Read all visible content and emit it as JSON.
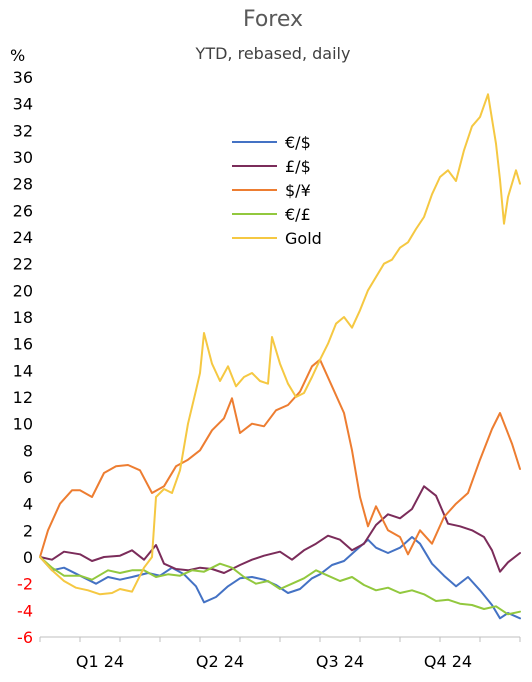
{
  "chart_data": {
    "type": "line",
    "title": "Forex",
    "subtitle": "YTD, rebased, daily",
    "ylabel": "%",
    "ylim": [
      -6,
      36
    ],
    "yticks": [
      -6,
      -4,
      -2,
      0,
      2,
      4,
      6,
      8,
      10,
      12,
      14,
      16,
      18,
      20,
      22,
      24,
      26,
      28,
      30,
      32,
      34,
      36
    ],
    "xlim": [
      0,
      12
    ],
    "xticks": [
      {
        "label": "Q1 24",
        "x": 1.5
      },
      {
        "label": "Q2 24",
        "x": 4.5
      },
      {
        "label": "Q3 24",
        "x": 7.5
      },
      {
        "label": "Q4 24",
        "x": 10.2
      }
    ],
    "legend_position": "upper-middle",
    "series": [
      {
        "name": "€/$",
        "color": "#4472c4",
        "points": [
          [
            0,
            0
          ],
          [
            0.3,
            -1
          ],
          [
            0.6,
            -0.8
          ],
          [
            1,
            -1.4
          ],
          [
            1.4,
            -2
          ],
          [
            1.7,
            -1.5
          ],
          [
            2,
            -1.7
          ],
          [
            2.3,
            -1.5
          ],
          [
            2.7,
            -1.2
          ],
          [
            3,
            -1.4
          ],
          [
            3.3,
            -0.8
          ],
          [
            3.6,
            -1.3
          ],
          [
            3.9,
            -2.2
          ],
          [
            4.1,
            -3.4
          ],
          [
            4.4,
            -3
          ],
          [
            4.7,
            -2.2
          ],
          [
            5,
            -1.6
          ],
          [
            5.3,
            -1.5
          ],
          [
            5.6,
            -1.7
          ],
          [
            5.9,
            -2.1
          ],
          [
            6.2,
            -2.7
          ],
          [
            6.5,
            -2.4
          ],
          [
            6.8,
            -1.6
          ],
          [
            7,
            -1.3
          ],
          [
            7.3,
            -0.6
          ],
          [
            7.6,
            -0.3
          ],
          [
            7.9,
            0.5
          ],
          [
            8.2,
            1.3
          ],
          [
            8.4,
            0.7
          ],
          [
            8.7,
            0.3
          ],
          [
            9,
            0.7
          ],
          [
            9.3,
            1.5
          ],
          [
            9.5,
            1
          ],
          [
            9.8,
            -0.5
          ],
          [
            10.1,
            -1.4
          ],
          [
            10.4,
            -2.2
          ],
          [
            10.7,
            -1.5
          ],
          [
            11,
            -2.5
          ],
          [
            11.3,
            -3.6
          ],
          [
            11.5,
            -4.6
          ],
          [
            11.7,
            -4.2
          ],
          [
            12,
            -4.6
          ]
        ]
      },
      {
        "name": "£/$",
        "color": "#7b2c5a",
        "points": [
          [
            0,
            0
          ],
          [
            0.3,
            -0.2
          ],
          [
            0.6,
            0.4
          ],
          [
            1,
            0.2
          ],
          [
            1.3,
            -0.3
          ],
          [
            1.6,
            0
          ],
          [
            2,
            0.1
          ],
          [
            2.3,
            0.5
          ],
          [
            2.6,
            -0.2
          ],
          [
            2.9,
            0.9
          ],
          [
            3.1,
            -0.5
          ],
          [
            3.4,
            -0.9
          ],
          [
            3.7,
            -1
          ],
          [
            4,
            -0.8
          ],
          [
            4.3,
            -0.9
          ],
          [
            4.6,
            -1.2
          ],
          [
            5,
            -0.6
          ],
          [
            5.3,
            -0.2
          ],
          [
            5.6,
            0.1
          ],
          [
            6,
            0.4
          ],
          [
            6.3,
            -0.2
          ],
          [
            6.6,
            0.5
          ],
          [
            6.9,
            1
          ],
          [
            7.2,
            1.6
          ],
          [
            7.5,
            1.3
          ],
          [
            7.8,
            0.5
          ],
          [
            8.1,
            1
          ],
          [
            8.4,
            2.4
          ],
          [
            8.7,
            3.2
          ],
          [
            9,
            2.9
          ],
          [
            9.3,
            3.6
          ],
          [
            9.6,
            5.3
          ],
          [
            9.9,
            4.6
          ],
          [
            10.2,
            2.5
          ],
          [
            10.5,
            2.3
          ],
          [
            10.8,
            2
          ],
          [
            11.1,
            1.5
          ],
          [
            11.3,
            0.5
          ],
          [
            11.5,
            -1.1
          ],
          [
            11.7,
            -0.4
          ],
          [
            12,
            0.3
          ]
        ]
      },
      {
        "name": "$/¥",
        "color": "#ed7d31",
        "points": [
          [
            0,
            0
          ],
          [
            0.2,
            2
          ],
          [
            0.5,
            4
          ],
          [
            0.8,
            5
          ],
          [
            1,
            5
          ],
          [
            1.3,
            4.5
          ],
          [
            1.6,
            6.3
          ],
          [
            1.9,
            6.8
          ],
          [
            2.2,
            6.9
          ],
          [
            2.5,
            6.5
          ],
          [
            2.8,
            4.8
          ],
          [
            3.1,
            5.3
          ],
          [
            3.4,
            6.8
          ],
          [
            3.7,
            7.3
          ],
          [
            4,
            8
          ],
          [
            4.3,
            9.5
          ],
          [
            4.6,
            10.4
          ],
          [
            4.8,
            11.9
          ],
          [
            5,
            9.3
          ],
          [
            5.3,
            10
          ],
          [
            5.6,
            9.8
          ],
          [
            5.9,
            11
          ],
          [
            6.2,
            11.4
          ],
          [
            6.5,
            12.4
          ],
          [
            6.8,
            14.3
          ],
          [
            7,
            14.8
          ],
          [
            7.3,
            12.8
          ],
          [
            7.6,
            10.8
          ],
          [
            7.8,
            8
          ],
          [
            8,
            4.5
          ],
          [
            8.2,
            2.3
          ],
          [
            8.4,
            3.8
          ],
          [
            8.7,
            2
          ],
          [
            9,
            1.5
          ],
          [
            9.2,
            0.2
          ],
          [
            9.5,
            2
          ],
          [
            9.8,
            1
          ],
          [
            10.1,
            3
          ],
          [
            10.4,
            4
          ],
          [
            10.7,
            4.8
          ],
          [
            11,
            7.3
          ],
          [
            11.3,
            9.6
          ],
          [
            11.5,
            10.8
          ],
          [
            11.8,
            8.5
          ],
          [
            12,
            6.6
          ]
        ]
      },
      {
        "name": "€/£",
        "color": "#92c83e",
        "points": [
          [
            0,
            0
          ],
          [
            0.3,
            -0.8
          ],
          [
            0.6,
            -1.4
          ],
          [
            1,
            -1.4
          ],
          [
            1.3,
            -1.7
          ],
          [
            1.7,
            -1
          ],
          [
            2,
            -1.2
          ],
          [
            2.3,
            -1
          ],
          [
            2.6,
            -1
          ],
          [
            2.9,
            -1.5
          ],
          [
            3.2,
            -1.3
          ],
          [
            3.5,
            -1.4
          ],
          [
            3.8,
            -1
          ],
          [
            4.1,
            -1.1
          ],
          [
            4.5,
            -0.5
          ],
          [
            4.8,
            -0.8
          ],
          [
            5.1,
            -1.5
          ],
          [
            5.4,
            -2
          ],
          [
            5.7,
            -1.8
          ],
          [
            6,
            -2.4
          ],
          [
            6.3,
            -2
          ],
          [
            6.6,
            -1.6
          ],
          [
            6.9,
            -1
          ],
          [
            7.2,
            -1.4
          ],
          [
            7.5,
            -1.8
          ],
          [
            7.8,
            -1.5
          ],
          [
            8.1,
            -2.1
          ],
          [
            8.4,
            -2.5
          ],
          [
            8.7,
            -2.3
          ],
          [
            9,
            -2.7
          ],
          [
            9.3,
            -2.5
          ],
          [
            9.6,
            -2.8
          ],
          [
            9.9,
            -3.3
          ],
          [
            10.2,
            -3.2
          ],
          [
            10.5,
            -3.5
          ],
          [
            10.8,
            -3.6
          ],
          [
            11.1,
            -3.9
          ],
          [
            11.4,
            -3.7
          ],
          [
            11.7,
            -4.3
          ],
          [
            12,
            -4.1
          ]
        ]
      },
      {
        "name": "Gold",
        "color": "#f5c842",
        "points": [
          [
            0,
            0
          ],
          [
            0.3,
            -1
          ],
          [
            0.6,
            -1.8
          ],
          [
            0.9,
            -2.3
          ],
          [
            1.2,
            -2.5
          ],
          [
            1.5,
            -2.8
          ],
          [
            1.8,
            -2.7
          ],
          [
            2,
            -2.4
          ],
          [
            2.3,
            -2.6
          ],
          [
            2.6,
            -0.8
          ],
          [
            2.8,
            0
          ],
          [
            2.9,
            4.5
          ],
          [
            3.1,
            5.1
          ],
          [
            3.3,
            4.8
          ],
          [
            3.5,
            6.5
          ],
          [
            3.7,
            10
          ],
          [
            3.9,
            12.5
          ],
          [
            4,
            13.8
          ],
          [
            4.1,
            16.8
          ],
          [
            4.3,
            14.5
          ],
          [
            4.5,
            13.2
          ],
          [
            4.7,
            14.3
          ],
          [
            4.9,
            12.8
          ],
          [
            5.1,
            13.5
          ],
          [
            5.3,
            13.8
          ],
          [
            5.5,
            13.2
          ],
          [
            5.7,
            13
          ],
          [
            5.8,
            16.5
          ],
          [
            6,
            14.5
          ],
          [
            6.2,
            13
          ],
          [
            6.4,
            12
          ],
          [
            6.6,
            12.3
          ],
          [
            6.8,
            13.5
          ],
          [
            7,
            14.8
          ],
          [
            7.2,
            16
          ],
          [
            7.4,
            17.5
          ],
          [
            7.6,
            18
          ],
          [
            7.8,
            17.2
          ],
          [
            8,
            18.5
          ],
          [
            8.2,
            20
          ],
          [
            8.4,
            21
          ],
          [
            8.6,
            22
          ],
          [
            8.8,
            22.3
          ],
          [
            9,
            23.2
          ],
          [
            9.2,
            23.6
          ],
          [
            9.4,
            24.6
          ],
          [
            9.6,
            25.5
          ],
          [
            9.8,
            27.2
          ],
          [
            10,
            28.5
          ],
          [
            10.2,
            29
          ],
          [
            10.4,
            28.2
          ],
          [
            10.6,
            30.5
          ],
          [
            10.8,
            32.3
          ],
          [
            11,
            33
          ],
          [
            11.2,
            34.7
          ],
          [
            11.4,
            31
          ],
          [
            11.5,
            28.3
          ],
          [
            11.6,
            25
          ],
          [
            11.7,
            27
          ],
          [
            11.9,
            29
          ],
          [
            12,
            28
          ]
        ]
      }
    ]
  }
}
